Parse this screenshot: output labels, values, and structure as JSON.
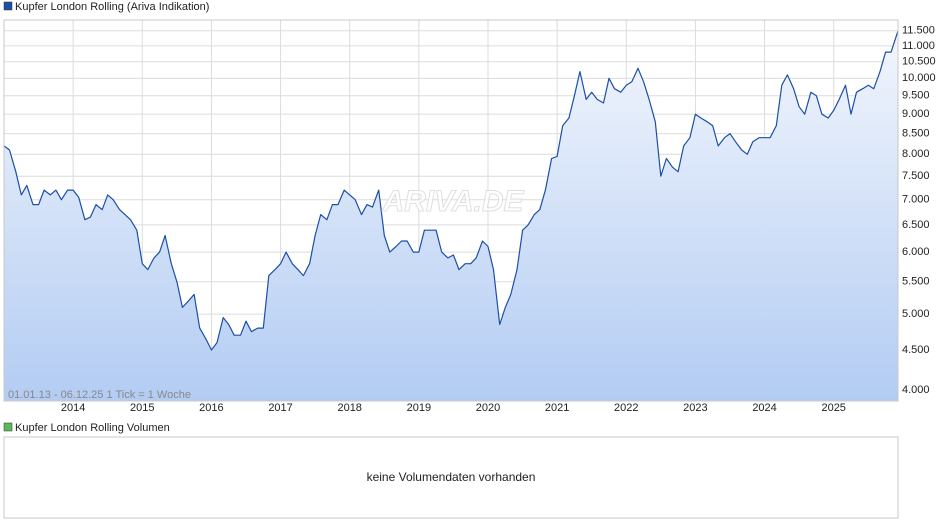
{
  "chart_data": {
    "type": "line",
    "log_scale": true,
    "grid": true,
    "xlim": [
      2013.0,
      2025.93
    ],
    "xticks": [
      2014,
      2015,
      2016,
      2017,
      2018,
      2019,
      2020,
      2021,
      2022,
      2023,
      2024,
      2025
    ],
    "ylim": [
      3874,
      11870
    ],
    "yticks": [
      {
        "value": 4000,
        "label": "4.000"
      },
      {
        "value": 4500,
        "label": "4.500"
      },
      {
        "value": 5000,
        "label": "5.000"
      },
      {
        "value": 5500,
        "label": "5.500"
      },
      {
        "value": 6000,
        "label": "6.000"
      },
      {
        "value": 6500,
        "label": "6.500"
      },
      {
        "value": 7000,
        "label": "7.000"
      },
      {
        "value": 7500,
        "label": "7.500"
      },
      {
        "value": 8000,
        "label": "8.000"
      },
      {
        "value": 8500,
        "label": "8.500"
      },
      {
        "value": 9000,
        "label": "9.000"
      },
      {
        "value": 9500,
        "label": "9.500"
      },
      {
        "value": 10000,
        "label": "10.000"
      },
      {
        "value": 10500,
        "label": "10.500"
      },
      {
        "value": 11000,
        "label": "11.000"
      },
      {
        "value": 11500,
        "label": "11.500"
      }
    ],
    "x": [
      2013.0,
      2013.08,
      2013.17,
      2013.25,
      2013.33,
      2013.42,
      2013.5,
      2013.58,
      2013.67,
      2013.75,
      2013.83,
      2013.92,
      2014.0,
      2014.08,
      2014.17,
      2014.25,
      2014.33,
      2014.42,
      2014.5,
      2014.58,
      2014.67,
      2014.75,
      2014.83,
      2014.92,
      2015.0,
      2015.08,
      2015.17,
      2015.25,
      2015.33,
      2015.42,
      2015.5,
      2015.58,
      2015.67,
      2015.75,
      2015.83,
      2015.92,
      2016.0,
      2016.08,
      2016.17,
      2016.25,
      2016.33,
      2016.42,
      2016.5,
      2016.58,
      2016.67,
      2016.75,
      2016.83,
      2016.92,
      2017.0,
      2017.08,
      2017.17,
      2017.25,
      2017.33,
      2017.42,
      2017.5,
      2017.58,
      2017.67,
      2017.75,
      2017.83,
      2017.92,
      2018.0,
      2018.08,
      2018.17,
      2018.25,
      2018.33,
      2018.42,
      2018.5,
      2018.58,
      2018.67,
      2018.75,
      2018.83,
      2018.92,
      2019.0,
      2019.08,
      2019.17,
      2019.25,
      2019.33,
      2019.42,
      2019.5,
      2019.58,
      2019.67,
      2019.75,
      2019.83,
      2019.92,
      2020.0,
      2020.08,
      2020.17,
      2020.25,
      2020.33,
      2020.42,
      2020.5,
      2020.58,
      2020.67,
      2020.75,
      2020.83,
      2020.92,
      2021.0,
      2021.08,
      2021.17,
      2021.25,
      2021.33,
      2021.42,
      2021.5,
      2021.58,
      2021.67,
      2021.75,
      2021.83,
      2021.92,
      2022.0,
      2022.08,
      2022.17,
      2022.25,
      2022.33,
      2022.42,
      2022.5,
      2022.58,
      2022.67,
      2022.75,
      2022.83,
      2022.92,
      2023.0,
      2023.08,
      2023.17,
      2023.25,
      2023.33,
      2023.42,
      2023.5,
      2023.58,
      2023.67,
      2023.75,
      2023.83,
      2023.92,
      2024.0,
      2024.08,
      2024.17,
      2024.25,
      2024.33,
      2024.42,
      2024.5,
      2024.58,
      2024.67,
      2024.75,
      2024.83,
      2024.92,
      2025.0,
      2025.08,
      2025.17,
      2025.25,
      2025.33,
      2025.42,
      2025.5,
      2025.58,
      2025.67,
      2025.75,
      2025.83,
      2025.93
    ],
    "series": [
      {
        "name": "Kupfer London Rolling (Ariva Indikation)",
        "color": "#1c4fa6",
        "values": [
          8200,
          8100,
          7600,
          7100,
          7300,
          6900,
          6900,
          7200,
          7100,
          7200,
          7000,
          7200,
          7200,
          7050,
          6600,
          6650,
          6900,
          6800,
          7100,
          7000,
          6800,
          6700,
          6600,
          6400,
          5800,
          5700,
          5900,
          6000,
          6300,
          5800,
          5500,
          5100,
          5200,
          5300,
          4800,
          4650,
          4500,
          4600,
          4950,
          4850,
          4700,
          4700,
          4900,
          4750,
          4800,
          4800,
          5600,
          5700,
          5800,
          6000,
          5800,
          5700,
          5600,
          5800,
          6300,
          6700,
          6600,
          6900,
          6900,
          7200,
          7100,
          7000,
          6700,
          6900,
          6850,
          7200,
          6300,
          6000,
          6100,
          6200,
          6200,
          6000,
          6000,
          6400,
          6400,
          6400,
          6000,
          5900,
          5950,
          5700,
          5800,
          5800,
          5900,
          6200,
          6100,
          5700,
          4850,
          5100,
          5300,
          5700,
          6400,
          6500,
          6700,
          6800,
          7200,
          7900,
          7950,
          8700,
          8900,
          9500,
          10200,
          9400,
          9600,
          9400,
          9300,
          10000,
          9700,
          9600,
          9800,
          9900,
          10300,
          9900,
          9400,
          8800,
          7500,
          7900,
          7700,
          7600,
          8200,
          8400,
          9000,
          8900,
          8800,
          8700,
          8200,
          8400,
          8500,
          8300,
          8100,
          8000,
          8300,
          8400,
          8400,
          8400,
          8700,
          9800,
          10100,
          9700,
          9200,
          9000,
          9600,
          9500,
          9000,
          8900,
          9100,
          9400,
          9800,
          9000,
          9600,
          9700,
          9800,
          9700,
          10200,
          10800,
          10800,
          11500
        ]
      }
    ],
    "range_note": "01.01.13 - 06.12.25   1 Tick = 1 Woche",
    "watermark": "ARIVA.DE",
    "volume_panel": {
      "name": "Kupfer London Rolling Volumen",
      "color": "#5cb85c",
      "message": "keine Volumendaten vorhanden"
    }
  }
}
